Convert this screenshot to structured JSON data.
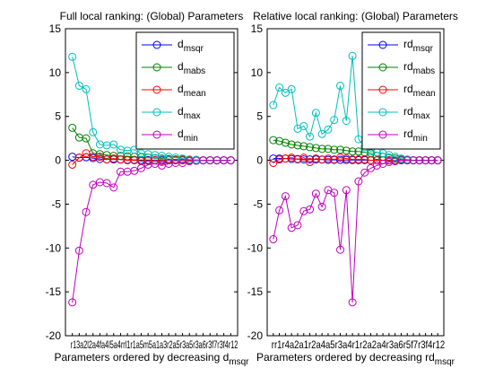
{
  "chart_data": [
    {
      "type": "line",
      "title": "Full local ranking: (Global) Parameters",
      "xlabel_main": "Parameters ordered by decreasing d",
      "xlabel_sub": "msqr",
      "ylim": [
        -20,
        15
      ],
      "yticks": [
        -20,
        -15,
        -10,
        -5,
        0,
        5,
        10,
        15
      ],
      "xtick_text": "r13a2l2a4fa4l5a4rrl1r1a5m5a1a3r2a5r3a5r3a6r3f7r3f4r12",
      "x": [
        1,
        2,
        3,
        4,
        5,
        6,
        7,
        8,
        9,
        10,
        11,
        12,
        13,
        14,
        15,
        16,
        17,
        18,
        19,
        20,
        21,
        22,
        23,
        24
      ],
      "legend_position": "top-right",
      "series": [
        {
          "base": "d",
          "sub": "msqr",
          "color": "#0000ff",
          "values": [
            0.4,
            0.3,
            0.35,
            0.25,
            0.15,
            0.1,
            0.1,
            0.08,
            0.05,
            0.05,
            0.04,
            0.03,
            0.02,
            0.02,
            0.01,
            0.01,
            0,
            0,
            0,
            0,
            0,
            0,
            0,
            0
          ]
        },
        {
          "base": "d",
          "sub": "mabs",
          "color": "#008000",
          "values": [
            3.7,
            2.6,
            2.5,
            0.8,
            0.7,
            0.6,
            0.5,
            0.5,
            0.45,
            0.4,
            0.35,
            0.3,
            0.25,
            0.2,
            0.15,
            0.1,
            0.1,
            0.05,
            0.05,
            0,
            0,
            0,
            0,
            0
          ]
        },
        {
          "base": "d",
          "sub": "mean",
          "color": "#ff0000",
          "values": [
            -0.5,
            0.3,
            0.8,
            0.4,
            0.4,
            0.1,
            0.2,
            0.1,
            0,
            0,
            -0.1,
            -0.05,
            0,
            -0.05,
            0.1,
            0,
            0,
            0,
            0,
            0,
            0,
            0,
            0,
            0
          ]
        },
        {
          "base": "d",
          "sub": "max",
          "color": "#00bfbf",
          "values": [
            11.8,
            8.5,
            8.1,
            3.2,
            1.8,
            1.7,
            1.8,
            1.2,
            1.1,
            1.2,
            0.8,
            0.7,
            0.6,
            0.5,
            0.4,
            0.3,
            0.2,
            0.1,
            0.05,
            0,
            0,
            0,
            0,
            0
          ]
        },
        {
          "base": "d",
          "sub": "min",
          "color": "#bf00bf",
          "values": [
            -16.2,
            -10.3,
            -5.9,
            -2.8,
            -2.5,
            -2.6,
            -3.1,
            -1.3,
            -1.3,
            -1.2,
            -0.9,
            -0.5,
            -0.4,
            -0.6,
            -0.4,
            -0.3,
            -0.3,
            -0.1,
            -0.05,
            0,
            0,
            0,
            0,
            0
          ]
        }
      ]
    },
    {
      "type": "line",
      "title": "Relative local ranking: (Global) Parameters",
      "xlabel_main": "Parameters ordered by decreasing rd",
      "xlabel_sub": "msqr",
      "ylim": [
        -20,
        15
      ],
      "yticks": [
        -20,
        -15,
        -10,
        -5,
        0,
        5,
        10,
        15
      ],
      "xtick_text": "rr1r4a2a1r2a4a5r3a4r1r2a2a4r3a6r5f7r3f4r12",
      "x": [
        1,
        2,
        3,
        4,
        5,
        6,
        7,
        8,
        9,
        10,
        11,
        12,
        13,
        14,
        15,
        16,
        17,
        18,
        19,
        20,
        21,
        22,
        23,
        24,
        25,
        26,
        27,
        28
      ],
      "legend_position": "top-right",
      "series": [
        {
          "base": "rd",
          "sub": "msqr",
          "color": "#0000ff",
          "values": [
            0.2,
            0.2,
            0.2,
            0.15,
            0.15,
            0.1,
            0.1,
            0.1,
            0.08,
            0.05,
            0.05,
            0.05,
            0.04,
            0.03,
            0.02,
            0.02,
            0.01,
            0.01,
            0.01,
            0,
            0,
            0,
            0,
            0,
            0,
            0,
            0,
            0
          ]
        },
        {
          "base": "rd",
          "sub": "mabs",
          "color": "#008000",
          "values": [
            2.3,
            2.2,
            2.0,
            1.8,
            1.7,
            1.6,
            1.5,
            1.4,
            1.3,
            1.3,
            1.2,
            1.2,
            1.1,
            1.0,
            1.0,
            0.9,
            0.8,
            0.5,
            0.4,
            0.3,
            0.2,
            0.1,
            0.05,
            0,
            0,
            0,
            0,
            0
          ]
        },
        {
          "base": "rd",
          "sub": "mean",
          "color": "#ff0000",
          "values": [
            -0.3,
            0.1,
            0.2,
            0.3,
            0.1,
            0.3,
            -0.2,
            0.2,
            0.1,
            0.2,
            0.1,
            0.3,
            0.2,
            0.1,
            0.1,
            0.1,
            0,
            0,
            0,
            0,
            0,
            0,
            0,
            0,
            0,
            0,
            0,
            0
          ]
        },
        {
          "base": "rd",
          "sub": "max",
          "color": "#00bfbf",
          "values": [
            6.3,
            8.3,
            7.7,
            8.1,
            3.6,
            3.9,
            2.7,
            5.4,
            3.0,
            3.5,
            4.6,
            8.5,
            4.5,
            11.9,
            2.4,
            1.5,
            1.0,
            0.9,
            0.8,
            0.6,
            0.4,
            0.2,
            0.1,
            0,
            0,
            0,
            0,
            0
          ]
        },
        {
          "base": "rd",
          "sub": "min",
          "color": "#bf00bf",
          "values": [
            -9.0,
            -5.7,
            -4.1,
            -7.7,
            -7.4,
            -5.8,
            -5.6,
            -3.8,
            -5.3,
            -3.4,
            -3.7,
            -10.2,
            -3.4,
            -16.2,
            -2.4,
            -1.4,
            -0.9,
            -0.6,
            -0.4,
            -0.2,
            -0.1,
            0,
            0,
            0,
            0,
            0,
            0,
            0
          ]
        }
      ]
    }
  ]
}
